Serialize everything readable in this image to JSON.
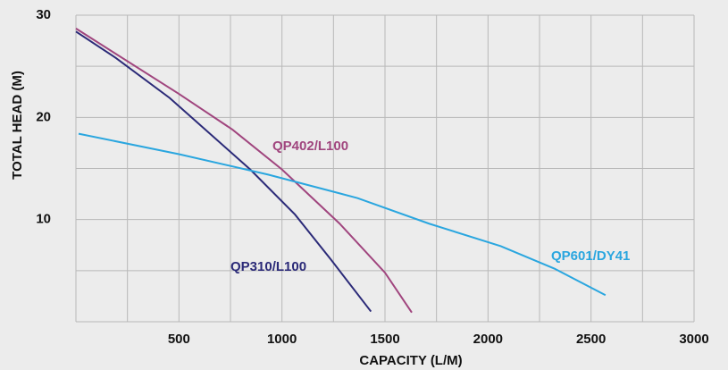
{
  "chart_data": {
    "type": "line",
    "x_label": "CAPACITY (L/M)",
    "y_label": "TOTAL HEAD (M)",
    "xlim": [
      0,
      3000
    ],
    "ylim": [
      0,
      30
    ],
    "xticks": [
      500,
      1000,
      1500,
      2000,
      2500,
      3000
    ],
    "yticks": [
      10,
      20,
      30
    ],
    "xgrid": [
      250,
      500,
      750,
      1000,
      1250,
      1500,
      1750,
      2000,
      2250,
      2500,
      2750,
      3000
    ],
    "ygrid": [
      5,
      10,
      15,
      20,
      25,
      30
    ],
    "series": [
      {
        "name": "QP402/L100",
        "color": "#a0457e",
        "x": [
          0,
          500,
          760,
          1000,
          1280,
          1500,
          1630
        ],
        "values": [
          28.7,
          22.3,
          18.8,
          14.9,
          9.6,
          4.8,
          0.9
        ]
      },
      {
        "name": "QP310/L100",
        "color": "#2b2a78",
        "x": [
          0,
          195,
          455,
          846,
          1063,
          1237,
          1432
        ],
        "values": [
          28.4,
          25.8,
          21.9,
          14.9,
          10.5,
          6.1,
          1.0
        ]
      },
      {
        "name": "QP601/DY41",
        "color": "#2aa6df",
        "x": [
          13,
          500,
          933,
          1367,
          1714,
          2062,
          2322,
          2570
        ],
        "values": [
          18.4,
          16.4,
          14.4,
          12.1,
          9.6,
          7.4,
          5.2,
          2.6
        ]
      }
    ]
  }
}
